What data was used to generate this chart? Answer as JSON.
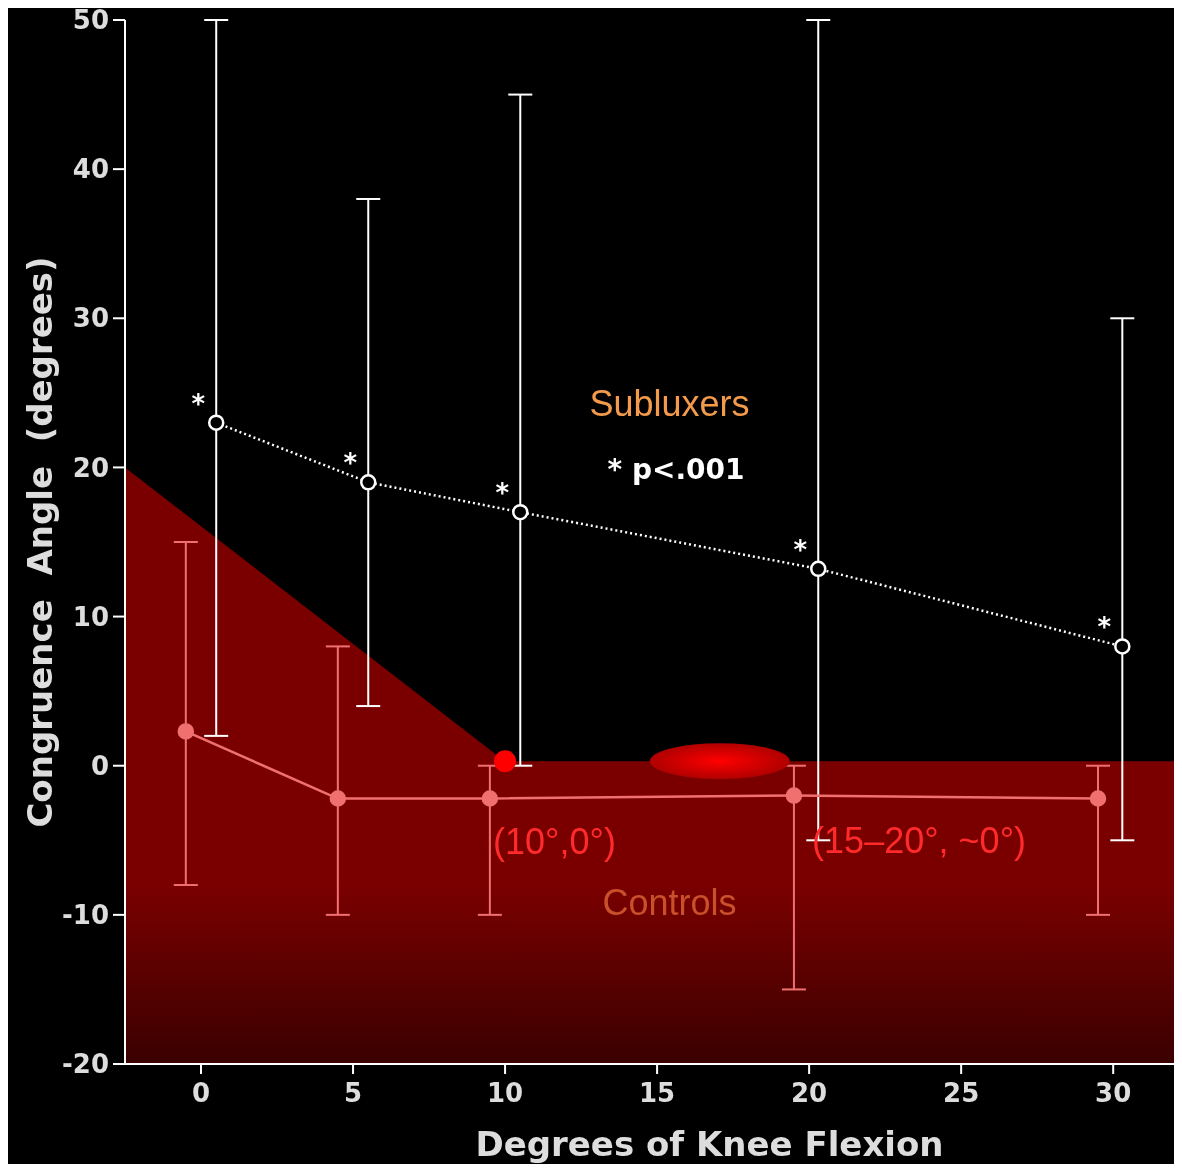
{
  "chart_data": {
    "type": "line",
    "xlabel": "Degrees of Knee Flexion",
    "ylabel": "Congruence  Angle  (degrees)",
    "xlim": [
      -2.5,
      32
    ],
    "ylim": [
      -20,
      50
    ],
    "xticks": [
      0,
      5,
      10,
      15,
      20,
      25,
      30
    ],
    "yticks": [
      -20,
      -10,
      0,
      10,
      20,
      30,
      40,
      50
    ],
    "marker": "circle",
    "series": [
      {
        "name": "Subluxers",
        "color": "#ffffff",
        "line_style": "dotted",
        "x": [
          0.5,
          5.5,
          10.5,
          20.3,
          30.3
        ],
        "values": [
          23,
          19,
          17,
          13.2,
          8
        ],
        "errors": [
          [
            2,
            50
          ],
          [
            4,
            38
          ],
          [
            0,
            45
          ],
          [
            -5,
            50
          ],
          [
            -5,
            30
          ]
        ],
        "value_labels": [
          "*",
          "*",
          "*",
          "*",
          "*"
        ]
      },
      {
        "name": "Controls",
        "color": "#f07070",
        "line_style": "solid",
        "x": [
          -0.5,
          4.5,
          9.5,
          19.5,
          29.5
        ],
        "values": [
          2.3,
          -2.2,
          -2.2,
          -2,
          -2.2
        ],
        "errors": [
          [
            -8,
            15
          ],
          [
            -10,
            8
          ],
          [
            -10,
            0
          ],
          [
            -15,
            0
          ],
          [
            -10,
            0
          ]
        ]
      },
      {
        "type": "scatter",
        "color": "#ff0000",
        "x": [
          10
        ],
        "values": [
          0.3
        ]
      }
    ],
    "annotations": [
      "* p<.001",
      {
        "text": "(10°,0°)",
        "x": 10,
        "y": 0
      },
      "(15–20°, ~0°)"
    ]
  }
}
